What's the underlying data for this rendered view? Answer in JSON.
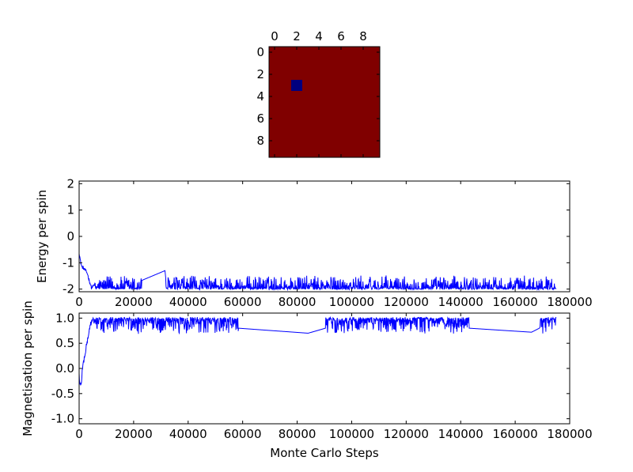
{
  "chart_data": [
    {
      "type": "heatmap",
      "rows": 10,
      "cols": 10,
      "base_value": 1,
      "highlight_cells": [
        [
          3,
          2
        ]
      ],
      "xticks": [
        0,
        2,
        4,
        6,
        8
      ],
      "yticks": [
        0,
        2,
        4,
        6,
        8
      ],
      "colors": {
        "base": "#800000",
        "highlight": "#00007f"
      }
    },
    {
      "type": "line",
      "ylabel": "Energy per spin",
      "xlim": [
        0,
        180000
      ],
      "ylim": [
        -2.1,
        2.1
      ],
      "xticks": [
        0,
        20000,
        40000,
        60000,
        80000,
        100000,
        120000,
        140000,
        160000,
        180000
      ],
      "yticks": [
        -2,
        -1,
        0,
        1,
        2
      ],
      "x_end": 175000,
      "series": [
        {
          "color": "#0000ff",
          "values": [
            [
              0,
              -0.6
            ],
            [
              500,
              -0.95
            ],
            [
              1000,
              -1.15
            ],
            [
              2000,
              -1.25
            ],
            [
              3000,
              -1.4
            ],
            [
              3800,
              -1.7
            ],
            [
              4500,
              -1.95
            ],
            [
              6000,
              -1.8
            ],
            [
              10000,
              -1.85
            ],
            [
              20000,
              -1.8
            ],
            [
              31500,
              -1.3
            ],
            [
              32000,
              -1.8
            ],
            [
              60000,
              -1.85
            ],
            [
              100000,
              -1.85
            ],
            [
              140000,
              -1.8
            ],
            [
              175000,
              -1.8
            ]
          ],
          "typical_level": -1.82,
          "noise_band": [
            -2.0,
            -1.5
          ]
        }
      ]
    },
    {
      "type": "line",
      "ylabel": "Magnetisation per spin",
      "xlabel": "Monte Carlo Steps",
      "xlim": [
        0,
        180000
      ],
      "ylim": [
        -1.1,
        1.1
      ],
      "xticks": [
        0,
        20000,
        40000,
        60000,
        80000,
        100000,
        120000,
        140000,
        160000,
        180000
      ],
      "yticks": [
        -1.0,
        -0.5,
        0.0,
        0.5,
        1.0
      ],
      "x_end": 175000,
      "series": [
        {
          "color": "#0000ff",
          "values": [
            [
              0,
              -0.1
            ],
            [
              300,
              -0.35
            ],
            [
              800,
              -0.3
            ],
            [
              1200,
              0.0
            ],
            [
              1700,
              0.15
            ],
            [
              2200,
              0.3
            ],
            [
              2700,
              0.45
            ],
            [
              3200,
              0.6
            ],
            [
              3700,
              0.75
            ],
            [
              4200,
              0.9
            ],
            [
              5000,
              0.95
            ],
            [
              20000,
              0.95
            ],
            [
              84000,
              0.7
            ],
            [
              100000,
              0.95
            ],
            [
              166000,
              0.72
            ],
            [
              175000,
              0.97
            ]
          ],
          "typical_level": 0.95,
          "noise_band": [
            0.7,
            1.0
          ]
        }
      ]
    }
  ]
}
